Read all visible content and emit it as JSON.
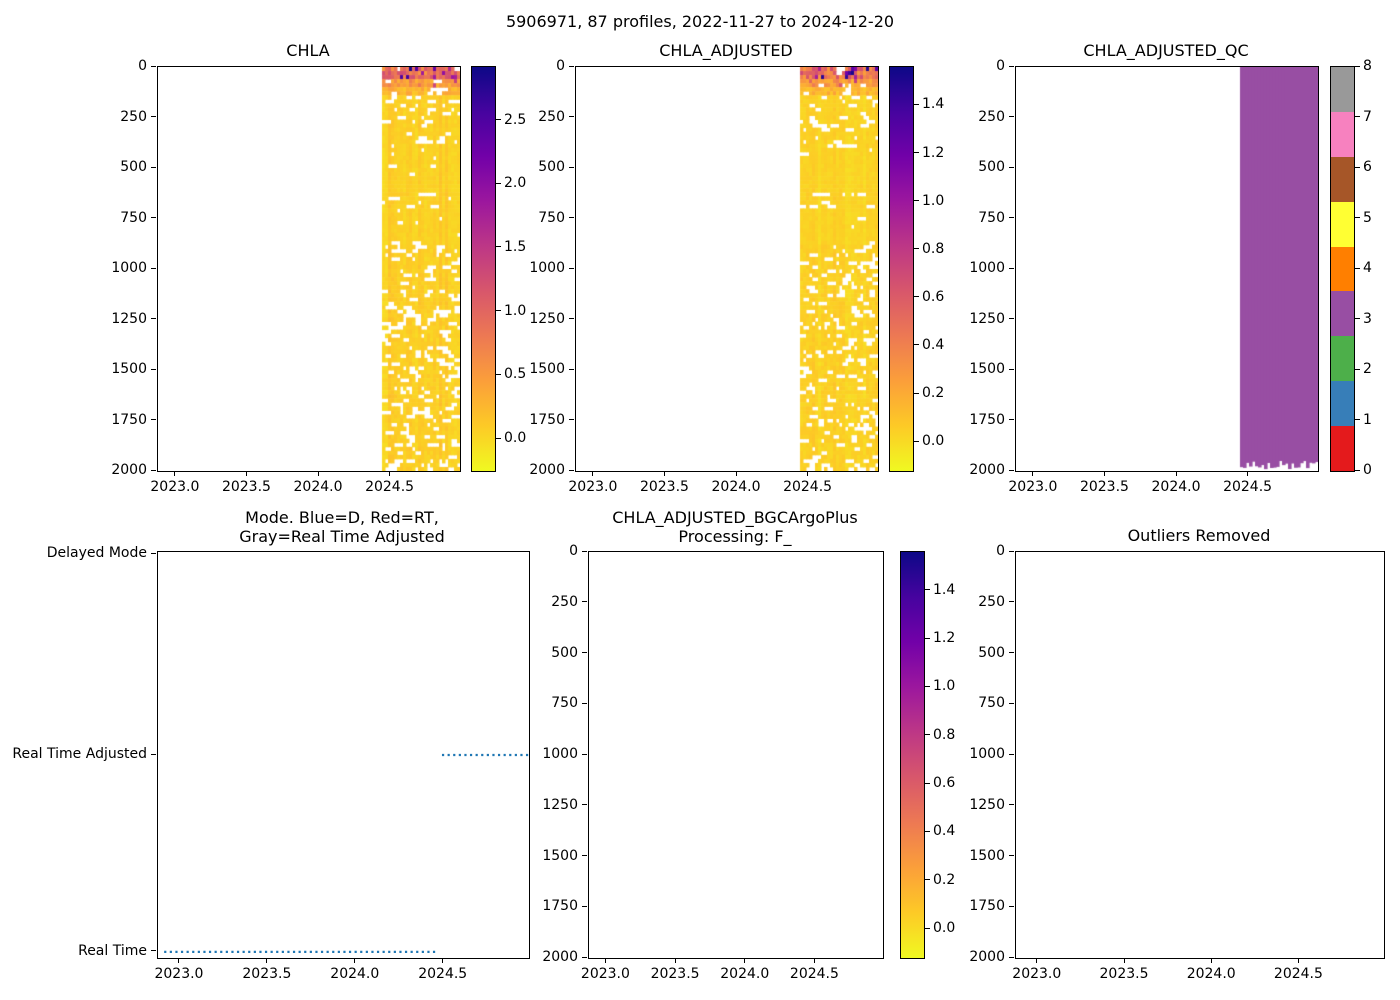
{
  "figure": {
    "suptitle": "5906971, 87 profiles, 2022-11-27 to 2024-12-20",
    "background": "#ffffff"
  },
  "palette": {
    "plasma": [
      "#0d0887",
      "#46039f",
      "#7201a8",
      "#9c179e",
      "#bd3786",
      "#d8576b",
      "#ed7953",
      "#fb9f3a",
      "#fdca26",
      "#f0f921"
    ],
    "qc_colors": [
      "#e41a1c",
      "#377eb8",
      "#4daf4a",
      "#984ea3",
      "#ff7f00",
      "#ffff33",
      "#a65628",
      "#f781bf",
      "#999999"
    ],
    "mode_line": "#1f77b4",
    "axis_color": "#000000"
  },
  "chart_data": [
    {
      "id": "chla",
      "type": "heatmap",
      "title": "CHLA",
      "xlim": [
        2022.875,
        2024.985
      ],
      "depth_range": [
        0,
        2000
      ],
      "xticks": [
        2023.0,
        2023.5,
        2024.0,
        2024.5
      ],
      "xtick_labels": [
        "2023.0",
        "2023.5",
        "2024.0",
        "2024.5"
      ],
      "yticks": [
        0,
        250,
        500,
        750,
        1000,
        1250,
        1500,
        1750,
        2000
      ],
      "ytick_labels": [
        "0",
        "250",
        "500",
        "750",
        "1000",
        "1250",
        "1500",
        "1750",
        "2000"
      ],
      "data_x_range": [
        2024.44,
        2024.985
      ],
      "n_profiles": 26,
      "seed": 7,
      "bands": [
        {
          "depth": [
            0,
            60
          ],
          "v": [
            0.5,
            1.3
          ],
          "spike": [
            1.7,
            2.9
          ],
          "spike_p": 0.2,
          "gap": 0.1
        },
        {
          "depth": [
            60,
            100
          ],
          "v": [
            0.3,
            0.8
          ],
          "spike": [
            0.9,
            1.5
          ],
          "spike_p": 0.05,
          "gap": 0.12
        },
        {
          "depth": [
            100,
            140
          ],
          "v": [
            0.15,
            0.45
          ],
          "gap": 0.15
        },
        {
          "depth": [
            140,
            400
          ],
          "v": [
            0.02,
            0.12
          ],
          "gap": 0.22
        },
        {
          "depth": [
            400,
            620
          ],
          "v": [
            0.02,
            0.1
          ],
          "gap": 0.03
        },
        {
          "depth": [
            620,
            700
          ],
          "v": [
            0.02,
            0.12
          ],
          "gap": 0.18
        },
        {
          "depth": [
            700,
            880
          ],
          "v": [
            0.02,
            0.1
          ],
          "gap": 0.05
        },
        {
          "depth": [
            880,
            1950
          ],
          "v": [
            0.02,
            0.14
          ],
          "gap": 0.28
        },
        {
          "depth": [
            1950,
            2000
          ],
          "v": [
            0.02,
            0.14
          ],
          "gap": 0.45
        }
      ],
      "colorbar": {
        "vmin": -0.25,
        "vmax": 2.92,
        "ticks": [
          0.0,
          0.5,
          1.0,
          1.5,
          2.0,
          2.5
        ],
        "tick_labels": [
          "0.0",
          "0.5",
          "1.0",
          "1.5",
          "2.0",
          "2.5"
        ],
        "cmap": "plasma_r"
      }
    },
    {
      "id": "chla_adjusted",
      "type": "heatmap",
      "title": "CHLA_ADJUSTED",
      "xlim": [
        2022.875,
        2024.985
      ],
      "depth_range": [
        0,
        2000
      ],
      "xticks": [
        2023.0,
        2023.5,
        2024.0,
        2024.5
      ],
      "xtick_labels": [
        "2023.0",
        "2023.5",
        "2024.0",
        "2024.5"
      ],
      "yticks": [
        0,
        250,
        500,
        750,
        1000,
        1250,
        1500,
        1750,
        2000
      ],
      "ytick_labels": [
        "0",
        "250",
        "500",
        "750",
        "1000",
        "1250",
        "1500",
        "1750",
        "2000"
      ],
      "data_x_range": [
        2024.44,
        2024.985
      ],
      "n_profiles": 26,
      "seed": 11,
      "bands": [
        {
          "depth": [
            0,
            60
          ],
          "v": [
            0.27,
            0.7
          ],
          "spike": [
            0.9,
            1.54
          ],
          "spike_p": 0.2,
          "gap": 0.1
        },
        {
          "depth": [
            60,
            100
          ],
          "v": [
            0.16,
            0.43
          ],
          "spike": [
            0.5,
            0.8
          ],
          "spike_p": 0.05,
          "gap": 0.12
        },
        {
          "depth": [
            100,
            140
          ],
          "v": [
            0.08,
            0.24
          ],
          "gap": 0.15
        },
        {
          "depth": [
            140,
            400
          ],
          "v": [
            0.01,
            0.06
          ],
          "gap": 0.22
        },
        {
          "depth": [
            400,
            620
          ],
          "v": [
            0.01,
            0.05
          ],
          "gap": 0.03
        },
        {
          "depth": [
            620,
            700
          ],
          "v": [
            0.01,
            0.06
          ],
          "gap": 0.18
        },
        {
          "depth": [
            700,
            880
          ],
          "v": [
            0.01,
            0.05
          ],
          "gap": 0.05
        },
        {
          "depth": [
            880,
            1950
          ],
          "v": [
            0.01,
            0.07
          ],
          "gap": 0.28
        },
        {
          "depth": [
            1950,
            2000
          ],
          "v": [
            0.01,
            0.07
          ],
          "gap": 0.45
        }
      ],
      "colorbar": {
        "vmin": -0.12,
        "vmax": 1.56,
        "ticks": [
          0.0,
          0.2,
          0.4,
          0.6,
          0.8,
          1.0,
          1.2,
          1.4
        ],
        "tick_labels": [
          "0.0",
          "0.2",
          "0.4",
          "0.6",
          "0.8",
          "1.0",
          "1.2",
          "1.4"
        ],
        "cmap": "plasma_r"
      }
    },
    {
      "id": "chla_adjusted_qc",
      "type": "qc_block",
      "title": "CHLA_ADJUSTED_QC",
      "xlim": [
        2022.875,
        2024.985
      ],
      "depth_range": [
        0,
        2000
      ],
      "xticks": [
        2023.0,
        2023.5,
        2024.0,
        2024.5
      ],
      "xtick_labels": [
        "2023.0",
        "2023.5",
        "2024.0",
        "2024.5"
      ],
      "yticks": [
        0,
        250,
        500,
        750,
        1000,
        1250,
        1500,
        1750,
        2000
      ],
      "ytick_labels": [
        "0",
        "250",
        "500",
        "750",
        "1000",
        "1250",
        "1500",
        "1750",
        "2000"
      ],
      "data_x_range": [
        2024.44,
        2024.985
      ],
      "n_profiles": 26,
      "seed": 5,
      "qc_value": 3,
      "bottom_depth_range": [
        1950,
        1995
      ],
      "colorbar": {
        "vmin": 0,
        "vmax": 8,
        "ticks": [
          0,
          1,
          2,
          3,
          4,
          5,
          6,
          7,
          8
        ],
        "tick_labels": [
          "0",
          "1",
          "2",
          "3",
          "4",
          "5",
          "6",
          "7",
          "8"
        ],
        "cmap": "Set1_discrete"
      }
    },
    {
      "id": "mode",
      "type": "mode_lines",
      "title_lines": [
        "Mode. Blue=D, Red=RT,",
        "Gray=Real Time Adjusted"
      ],
      "xlim": [
        2022.875,
        2024.985
      ],
      "xticks": [
        2023.0,
        2023.5,
        2024.0,
        2024.5
      ],
      "xtick_labels": [
        "2023.0",
        "2023.5",
        "2024.0",
        "2024.5"
      ],
      "categories": [
        "Delayed Mode",
        "Real Time Adjusted",
        "Real Time"
      ],
      "segments": [
        {
          "level": "Real Time",
          "x": [
            2022.91,
            2024.47
          ]
        },
        {
          "level": "Real Time Adjusted",
          "x": [
            2024.49,
            2024.985
          ]
        }
      ],
      "line_style": "dotted"
    },
    {
      "id": "bgc",
      "type": "empty_heatmap",
      "title_lines": [
        "CHLA_ADJUSTED_BGCArgoPlus",
        "Processing: F_"
      ],
      "xlim": [
        2022.875,
        2024.985
      ],
      "depth_range": [
        0,
        2000
      ],
      "xticks": [
        2023.0,
        2023.5,
        2024.0,
        2024.5
      ],
      "xtick_labels": [
        "2023.0",
        "2023.5",
        "2024.0",
        "2024.5"
      ],
      "yticks": [
        0,
        250,
        500,
        750,
        1000,
        1250,
        1500,
        1750,
        2000
      ],
      "ytick_labels": [
        "0",
        "250",
        "500",
        "750",
        "1000",
        "1250",
        "1500",
        "1750",
        "2000"
      ],
      "colorbar": {
        "vmin": -0.12,
        "vmax": 1.56,
        "ticks": [
          0.0,
          0.2,
          0.4,
          0.6,
          0.8,
          1.0,
          1.2,
          1.4
        ],
        "tick_labels": [
          "0.0",
          "0.2",
          "0.4",
          "0.6",
          "0.8",
          "1.0",
          "1.2",
          "1.4"
        ],
        "cmap": "plasma_r"
      }
    },
    {
      "id": "outliers",
      "type": "empty",
      "title": "Outliers Removed",
      "xlim": [
        2022.875,
        2024.985
      ],
      "depth_range": [
        0,
        2000
      ],
      "xticks": [
        2023.0,
        2023.5,
        2024.0,
        2024.5
      ],
      "xtick_labels": [
        "2023.0",
        "2023.5",
        "2024.0",
        "2024.5"
      ],
      "yticks": [
        0,
        250,
        500,
        750,
        1000,
        1250,
        1500,
        1750,
        2000
      ],
      "ytick_labels": [
        "0",
        "250",
        "500",
        "750",
        "1000",
        "1250",
        "1500",
        "1750",
        "2000"
      ]
    }
  ]
}
